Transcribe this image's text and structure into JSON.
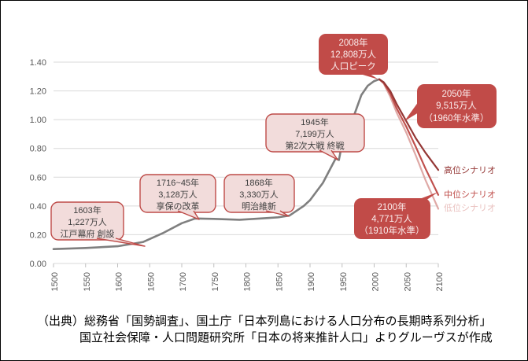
{
  "chart_data": {
    "type": "line",
    "title": "",
    "xlabel": "",
    "ylabel": "",
    "xlim": [
      1500,
      2100
    ],
    "ylim": [
      0,
      1.4
    ],
    "grid": true,
    "legend_position": "right",
    "x_ticks": [
      "1500",
      "1550",
      "1600",
      "1650",
      "1700",
      "1750",
      "1800",
      "1850",
      "1900",
      "1950",
      "2000",
      "2050",
      "2100"
    ],
    "y_ticks": [
      "0.00",
      "0.20",
      "0.40",
      "0.60",
      "0.80",
      "1.00",
      "1.20",
      "1.40"
    ],
    "series": [
      {
        "name": "population-actual",
        "color": "#7F7F7F",
        "points": [
          [
            1500,
            0.1
          ],
          [
            1550,
            0.108
          ],
          [
            1600,
            0.12
          ],
          [
            1640,
            0.15
          ],
          [
            1670,
            0.21
          ],
          [
            1700,
            0.28
          ],
          [
            1721,
            0.3128
          ],
          [
            1750,
            0.31
          ],
          [
            1790,
            0.304
          ],
          [
            1830,
            0.315
          ],
          [
            1850,
            0.321
          ],
          [
            1868,
            0.333
          ],
          [
            1890,
            0.4
          ],
          [
            1900,
            0.44
          ],
          [
            1910,
            0.5
          ],
          [
            1920,
            0.56
          ],
          [
            1930,
            0.645
          ],
          [
            1940,
            0.73
          ],
          [
            1945,
            0.7199
          ],
          [
            1950,
            0.835
          ],
          [
            1960,
            0.943
          ],
          [
            1970,
            1.047
          ],
          [
            1980,
            1.171
          ],
          [
            1990,
            1.236
          ],
          [
            2000,
            1.268
          ],
          [
            2008,
            1.2808
          ]
        ]
      },
      {
        "name": "高位シナリオ",
        "color": "#943634",
        "points": [
          [
            2008,
            1.2808
          ],
          [
            2015,
            1.26
          ],
          [
            2025,
            1.2
          ],
          [
            2035,
            1.11
          ],
          [
            2050,
            0.99
          ],
          [
            2065,
            0.87
          ],
          [
            2080,
            0.77
          ],
          [
            2100,
            0.65
          ]
        ]
      },
      {
        "name": "中位シナリオ",
        "color": "#C0504D",
        "points": [
          [
            2008,
            1.2808
          ],
          [
            2015,
            1.255
          ],
          [
            2025,
            1.18
          ],
          [
            2035,
            1.08
          ],
          [
            2050,
            0.9515
          ],
          [
            2065,
            0.81
          ],
          [
            2080,
            0.66
          ],
          [
            2100,
            0.4771
          ]
        ]
      },
      {
        "name": "低位シナリオ",
        "color": "#DFA9A6",
        "points": [
          [
            2008,
            1.2808
          ],
          [
            2015,
            1.25
          ],
          [
            2025,
            1.16
          ],
          [
            2035,
            1.05
          ],
          [
            2050,
            0.91
          ],
          [
            2065,
            0.75
          ],
          [
            2080,
            0.58
          ],
          [
            2100,
            0.38
          ]
        ]
      }
    ],
    "scenario_labels": [
      {
        "label": "高位シナリオ",
        "color": "#943634"
      },
      {
        "label": "中位シナリオ",
        "color": "#C0504D"
      },
      {
        "label": "低位シナリオ",
        "color": "#E9C0BE"
      }
    ],
    "annotations": [
      {
        "style": "light",
        "year": "1603",
        "value_man": "1,227",
        "lines": [
          "1603年",
          "1,227万人",
          "江戸幕府 創設"
        ]
      },
      {
        "style": "light",
        "year": "1716~45",
        "value_man": "3,128",
        "lines": [
          "1716~45年",
          "3,128万人",
          "享保の改革"
        ]
      },
      {
        "style": "light",
        "year": "1868",
        "value_man": "3,330",
        "lines": [
          "1868年",
          "3,330万人",
          "明治維新"
        ]
      },
      {
        "style": "light",
        "year": "1945",
        "value_man": "7,199",
        "lines": [
          "1945年",
          "7,199万人",
          "第2次大戦 終戦"
        ]
      },
      {
        "style": "dark",
        "year": "2008",
        "value_man": "12,808",
        "lines": [
          "2008年",
          "12,808万人",
          "人口ピーク"
        ]
      },
      {
        "style": "dark",
        "year": "2050",
        "value_man": "9,515",
        "lines": [
          "2050年",
          "9,515万人",
          "（1960年水準）"
        ]
      },
      {
        "style": "dark",
        "year": "2100",
        "value_man": "4,771",
        "lines": [
          "2100年",
          "4,771万人",
          "（1910年水準）"
        ]
      }
    ]
  },
  "colors": {
    "callout_light_bg": "#F2DCDB",
    "callout_border": "#BE4B48",
    "callout_dark_bg": "#C14B48",
    "grid": "#D9D9D9",
    "axis_text": "#595959",
    "line_actual": "#7F7F7F"
  },
  "source": {
    "line1": "（出典）総務省「国勢調査」、国土庁「日本列島における人口分布の長期時系列分析」",
    "line2": "国立社会保障・人口問題研究所「日本の将来推計人口」よりグルーヴスが作成"
  }
}
